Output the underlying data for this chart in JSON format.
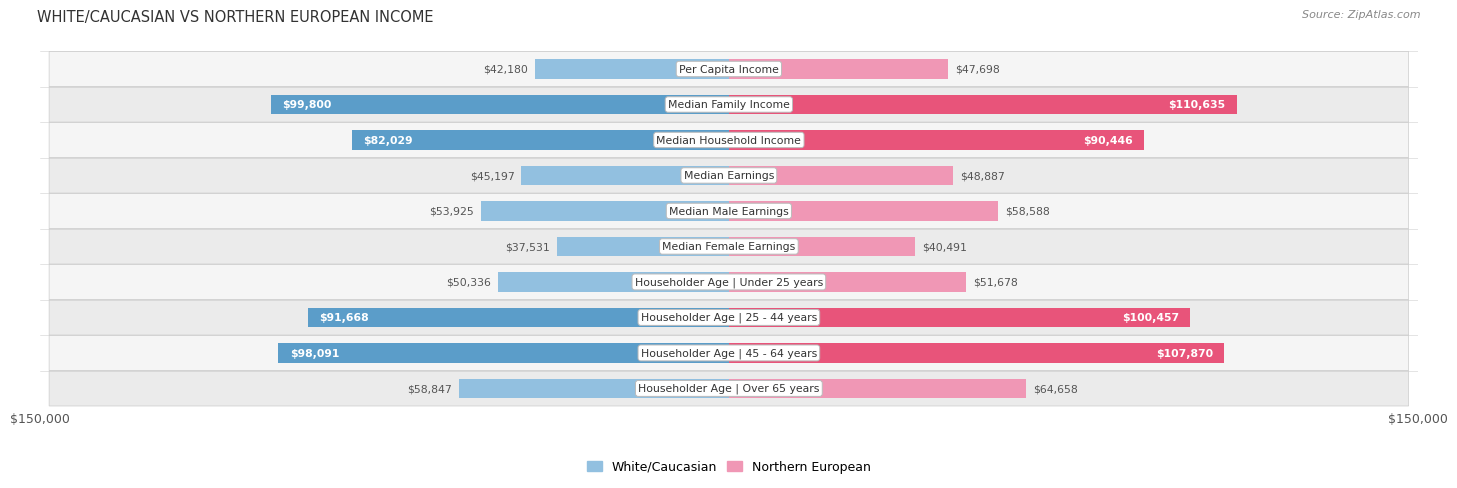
{
  "title": "White/Caucasian vs Northern European Income",
  "source": "Source: ZipAtlas.com",
  "categories": [
    "Per Capita Income",
    "Median Family Income",
    "Median Household Income",
    "Median Earnings",
    "Median Male Earnings",
    "Median Female Earnings",
    "Householder Age | Under 25 years",
    "Householder Age | 25 - 44 years",
    "Householder Age | 45 - 64 years",
    "Householder Age | Over 65 years"
  ],
  "white_values": [
    42180,
    99800,
    82029,
    45197,
    53925,
    37531,
    50336,
    91668,
    98091,
    58847
  ],
  "northern_values": [
    47698,
    110635,
    90446,
    48887,
    58588,
    40491,
    51678,
    100457,
    107870,
    64658
  ],
  "white_bar_color": "#92C0E0",
  "northern_bar_color": "#F097B5",
  "white_bar_large_color": "#5B9DC9",
  "northern_bar_large_color": "#E8547A",
  "row_bg_even": "#F5F5F5",
  "row_bg_odd": "#EBEBEB",
  "max_value": 150000,
  "xlabel_left": "$150,000",
  "xlabel_right": "$150,000",
  "legend_white": "White/Caucasian",
  "legend_northern": "Northern European",
  "inside_label_threshold": 80000,
  "title_color": "#333333",
  "source_color": "#888888",
  "label_outside_color": "#555555",
  "label_inside_color": "#ffffff"
}
